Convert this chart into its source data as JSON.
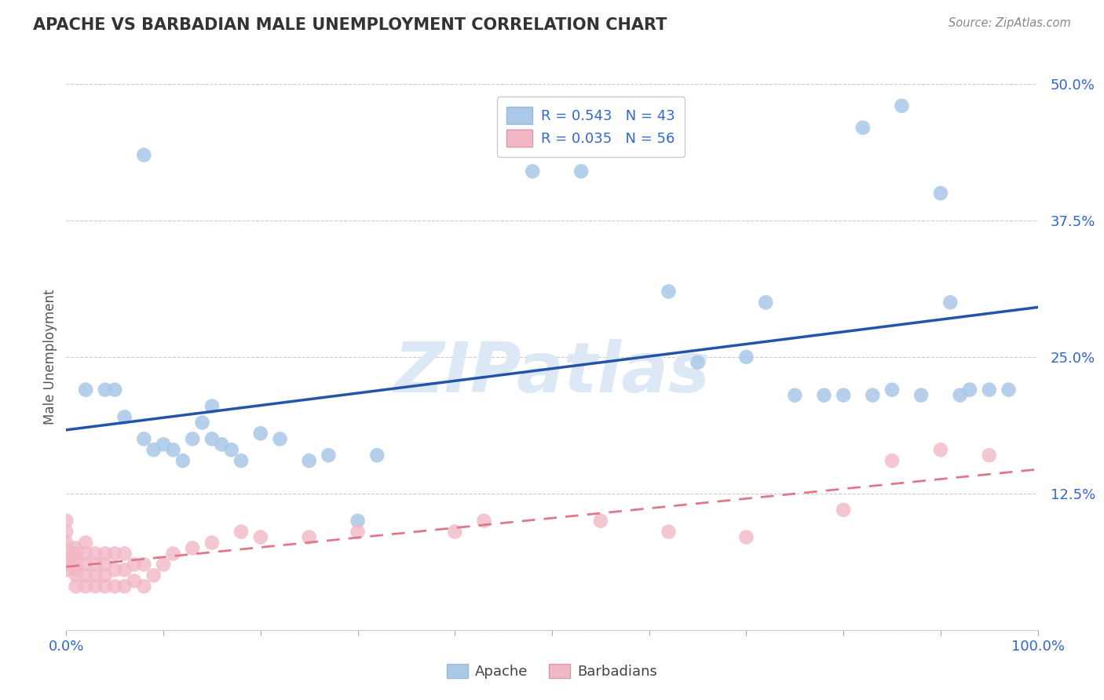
{
  "title": "APACHE VS BARBADIAN MALE UNEMPLOYMENT CORRELATION CHART",
  "source": "Source: ZipAtlas.com",
  "ylabel": "Male Unemployment",
  "xlim": [
    0,
    1.0
  ],
  "ylim": [
    0,
    0.5
  ],
  "yticks": [
    0.0,
    0.125,
    0.25,
    0.375,
    0.5
  ],
  "ytick_labels": [
    "",
    "12.5%",
    "25.0%",
    "37.5%",
    "50.0%"
  ],
  "xtick_vals": [
    0.0,
    0.1,
    0.2,
    0.3,
    0.4,
    0.5,
    0.6,
    0.7,
    0.8,
    0.9,
    1.0
  ],
  "xtick_labels": [
    "0.0%",
    "",
    "",
    "",
    "",
    "",
    "",
    "",
    "",
    "",
    "100.0%"
  ],
  "apache_R": 0.543,
  "apache_N": 43,
  "barbadian_R": 0.035,
  "barbadian_N": 56,
  "apache_color": "#aac8e8",
  "barbadian_color": "#f2b8c6",
  "apache_line_color": "#2255aa",
  "barbadian_line_color": "#e07888",
  "tick_color": "#3366cc",
  "title_color": "#333333",
  "source_color": "#888888",
  "watermark_color": "#dce8f5",
  "grid_color": "#cccccc",
  "apache_x": [
    0.08,
    0.48,
    0.53,
    0.62,
    0.72,
    0.82,
    0.86,
    0.9,
    0.91,
    0.02,
    0.04,
    0.05,
    0.06,
    0.08,
    0.09,
    0.1,
    0.11,
    0.12,
    0.13,
    0.14,
    0.15,
    0.16,
    0.18,
    0.2,
    0.22,
    0.25,
    0.27,
    0.32,
    0.65,
    0.7,
    0.75,
    0.78,
    0.8,
    0.83,
    0.85,
    0.88,
    0.92,
    0.93,
    0.95,
    0.97,
    0.15,
    0.17,
    0.3
  ],
  "apache_y": [
    0.435,
    0.42,
    0.42,
    0.31,
    0.3,
    0.46,
    0.48,
    0.4,
    0.3,
    0.22,
    0.22,
    0.22,
    0.195,
    0.175,
    0.165,
    0.17,
    0.165,
    0.155,
    0.175,
    0.19,
    0.175,
    0.17,
    0.155,
    0.18,
    0.175,
    0.155,
    0.16,
    0.16,
    0.245,
    0.25,
    0.215,
    0.215,
    0.215,
    0.215,
    0.22,
    0.215,
    0.215,
    0.22,
    0.22,
    0.22,
    0.205,
    0.165,
    0.1
  ],
  "barbadian_x": [
    0.0,
    0.0,
    0.0,
    0.0,
    0.0,
    0.0,
    0.0,
    0.0,
    0.01,
    0.01,
    0.01,
    0.01,
    0.01,
    0.01,
    0.01,
    0.02,
    0.02,
    0.02,
    0.02,
    0.02,
    0.03,
    0.03,
    0.03,
    0.03,
    0.04,
    0.04,
    0.04,
    0.04,
    0.05,
    0.05,
    0.05,
    0.06,
    0.06,
    0.06,
    0.07,
    0.07,
    0.08,
    0.08,
    0.09,
    0.1,
    0.11,
    0.13,
    0.15,
    0.18,
    0.2,
    0.25,
    0.3,
    0.4,
    0.43,
    0.55,
    0.62,
    0.7,
    0.8,
    0.85,
    0.9,
    0.95
  ],
  "barbadian_y": [
    0.06,
    0.065,
    0.07,
    0.075,
    0.08,
    0.09,
    0.1,
    0.055,
    0.04,
    0.05,
    0.055,
    0.06,
    0.065,
    0.07,
    0.075,
    0.04,
    0.05,
    0.06,
    0.07,
    0.08,
    0.04,
    0.05,
    0.06,
    0.07,
    0.04,
    0.05,
    0.06,
    0.07,
    0.04,
    0.055,
    0.07,
    0.04,
    0.055,
    0.07,
    0.045,
    0.06,
    0.04,
    0.06,
    0.05,
    0.06,
    0.07,
    0.075,
    0.08,
    0.09,
    0.085,
    0.085,
    0.09,
    0.09,
    0.1,
    0.1,
    0.09,
    0.085,
    0.11,
    0.155,
    0.165,
    0.16
  ]
}
